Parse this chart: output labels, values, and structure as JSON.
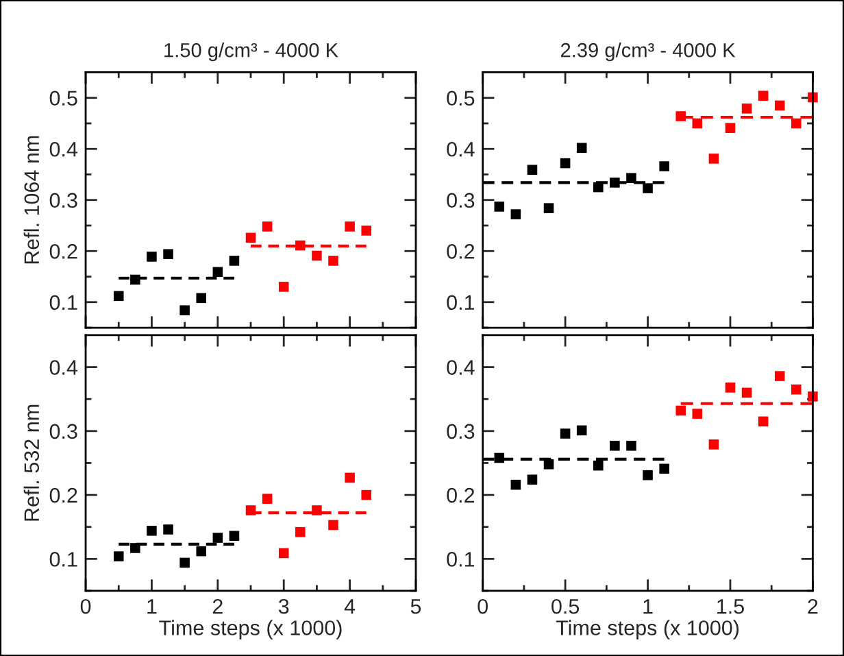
{
  "chart_data": [
    {
      "type": "scatter",
      "title": "1.50 g/cm³ - 4000 K",
      "ylabel": "Refl. 1064 nm",
      "xlim": [
        0,
        5
      ],
      "ylim": [
        0.05,
        0.55
      ],
      "xticks": [
        0,
        {
          "value": 0.5,
          "label": null
        },
        1,
        {
          "value": 1.5,
          "label": null
        },
        2,
        {
          "value": 2.5,
          "label": null
        },
        3,
        {
          "value": 3.5,
          "label": null
        },
        4,
        {
          "value": 4.5,
          "label": null
        },
        5
      ],
      "yticks": [
        {
          "value": 0.05,
          "label": null
        },
        0.1,
        {
          "value": 0.15,
          "label": null
        },
        0.2,
        {
          "value": 0.25,
          "label": null
        },
        0.3,
        {
          "value": 0.35,
          "label": null
        },
        0.4,
        {
          "value": 0.45,
          "label": null
        },
        0.5
      ],
      "tick_labels": "y",
      "grid": false,
      "marker": "square",
      "series": [
        {
          "type": "scatter",
          "color": "#000000",
          "x": [
            0.5,
            0.75,
            1.0,
            1.25,
            1.5,
            1.75,
            2.0,
            2.25
          ],
          "values": [
            0.112,
            0.144,
            0.189,
            0.194,
            0.084,
            0.108,
            0.159,
            0.181
          ]
        },
        {
          "type": "scatter",
          "color": "#ff0000",
          "x": [
            2.5,
            2.75,
            3.0,
            3.25,
            3.5,
            3.75,
            4.0,
            4.25
          ],
          "values": [
            0.226,
            0.248,
            0.13,
            0.211,
            0.191,
            0.181,
            0.248,
            0.24
          ]
        },
        {
          "type": "line",
          "color": "#000000",
          "line_style": "dashed",
          "marker": "none",
          "x": [
            0.5,
            2.25
          ],
          "values": [
            0.147,
            0.147
          ]
        },
        {
          "type": "line",
          "color": "#ff0000",
          "line_style": "dashed",
          "marker": "none",
          "x": [
            2.5,
            4.25
          ],
          "values": [
            0.21,
            0.21
          ]
        }
      ]
    },
    {
      "type": "scatter",
      "title": "2.39 g/cm³ - 4000 K",
      "xlim": [
        0,
        2
      ],
      "ylim": [
        0.05,
        0.55
      ],
      "xticks": [
        0,
        {
          "value": 0.25,
          "label": null
        },
        0.5,
        {
          "value": 0.75,
          "label": null
        },
        1,
        {
          "value": 1.25,
          "label": null
        },
        1.5,
        {
          "value": 1.75,
          "label": null
        },
        2
      ],
      "yticks": [
        {
          "value": 0.05,
          "label": null
        },
        0.1,
        {
          "value": 0.15,
          "label": null
        },
        0.2,
        {
          "value": 0.25,
          "label": null
        },
        0.3,
        {
          "value": 0.35,
          "label": null
        },
        0.4,
        {
          "value": 0.45,
          "label": null
        },
        0.5
      ],
      "tick_labels": "y",
      "grid": false,
      "marker": "square",
      "series": [
        {
          "type": "scatter",
          "color": "#000000",
          "x": [
            0.1,
            0.2,
            0.3,
            0.4,
            0.5,
            0.6,
            0.7,
            0.8,
            0.9,
            1.0,
            1.1
          ],
          "values": [
            0.287,
            0.272,
            0.359,
            0.284,
            0.372,
            0.402,
            0.325,
            0.334,
            0.343,
            0.323,
            0.366
          ]
        },
        {
          "type": "scatter",
          "color": "#ff0000",
          "x": [
            1.2,
            1.3,
            1.4,
            1.5,
            1.6,
            1.7,
            1.8,
            1.9,
            2.0
          ],
          "values": [
            0.464,
            0.45,
            0.381,
            0.441,
            0.479,
            0.504,
            0.485,
            0.45,
            0.501
          ]
        },
        {
          "type": "line",
          "color": "#000000",
          "line_style": "dashed",
          "marker": "none",
          "x": [
            0.0,
            1.1
          ],
          "values": [
            0.334,
            0.334
          ]
        },
        {
          "type": "line",
          "color": "#ff0000",
          "line_style": "dashed",
          "marker": "none",
          "x": [
            1.2,
            2.0
          ],
          "values": [
            0.462,
            0.462
          ]
        }
      ]
    },
    {
      "type": "scatter",
      "xlabel": "Time steps (x 1000)",
      "ylabel": "Refl. 532 nm",
      "xlim": [
        0,
        5
      ],
      "ylim": [
        0.05,
        0.45
      ],
      "xticks": [
        0,
        {
          "value": 0.5,
          "label": null
        },
        1,
        {
          "value": 1.5,
          "label": null
        },
        2,
        {
          "value": 2.5,
          "label": null
        },
        3,
        {
          "value": 3.5,
          "label": null
        },
        4,
        {
          "value": 4.5,
          "label": null
        },
        5
      ],
      "yticks": [
        {
          "value": 0.05,
          "label": null
        },
        0.1,
        {
          "value": 0.15,
          "label": null
        },
        0.2,
        {
          "value": 0.25,
          "label": null
        },
        0.3,
        {
          "value": 0.35,
          "label": null
        },
        0.4
      ],
      "grid": false,
      "marker": "square",
      "series": [
        {
          "type": "scatter",
          "color": "#000000",
          "x": [
            0.5,
            0.75,
            1.0,
            1.25,
            1.5,
            1.75,
            2.0,
            2.25
          ],
          "values": [
            0.104,
            0.117,
            0.144,
            0.146,
            0.094,
            0.112,
            0.133,
            0.136
          ]
        },
        {
          "type": "scatter",
          "color": "#ff0000",
          "x": [
            2.5,
            2.75,
            3.0,
            3.25,
            3.5,
            3.75,
            4.0,
            4.25
          ],
          "values": [
            0.176,
            0.194,
            0.109,
            0.142,
            0.176,
            0.153,
            0.227,
            0.2
          ]
        },
        {
          "type": "line",
          "color": "#000000",
          "line_style": "dashed",
          "marker": "none",
          "x": [
            0.5,
            2.25
          ],
          "values": [
            0.123,
            0.123
          ]
        },
        {
          "type": "line",
          "color": "#ff0000",
          "line_style": "dashed",
          "marker": "none",
          "x": [
            2.5,
            4.25
          ],
          "values": [
            0.172,
            0.172
          ]
        }
      ]
    },
    {
      "type": "scatter",
      "xlabel": "Time steps (x 1000)",
      "xlim": [
        0,
        2
      ],
      "ylim": [
        0.05,
        0.45
      ],
      "xticks": [
        0,
        {
          "value": 0.25,
          "label": null
        },
        0.5,
        {
          "value": 0.75,
          "label": null
        },
        1,
        {
          "value": 1.25,
          "label": null
        },
        1.5,
        {
          "value": 1.75,
          "label": null
        },
        2
      ],
      "yticks": [
        {
          "value": 0.05,
          "label": null
        },
        0.1,
        {
          "value": 0.15,
          "label": null
        },
        0.2,
        {
          "value": 0.25,
          "label": null
        },
        0.3,
        {
          "value": 0.35,
          "label": null
        },
        0.4
      ],
      "grid": false,
      "marker": "square",
      "series": [
        {
          "type": "scatter",
          "color": "#000000",
          "x": [
            0.1,
            0.2,
            0.3,
            0.4,
            0.5,
            0.6,
            0.7,
            0.8,
            0.9,
            1.0,
            1.1
          ],
          "values": [
            0.258,
            0.216,
            0.224,
            0.248,
            0.296,
            0.301,
            0.246,
            0.277,
            0.277,
            0.231,
            0.241
          ]
        },
        {
          "type": "scatter",
          "color": "#ff0000",
          "x": [
            1.2,
            1.3,
            1.4,
            1.5,
            1.6,
            1.7,
            1.8,
            1.9,
            2.0
          ],
          "values": [
            0.332,
            0.327,
            0.279,
            0.368,
            0.36,
            0.315,
            0.386,
            0.365,
            0.354
          ]
        },
        {
          "type": "line",
          "color": "#000000",
          "line_style": "dashed",
          "marker": "none",
          "x": [
            0.0,
            1.1
          ],
          "values": [
            0.256,
            0.256
          ]
        },
        {
          "type": "line",
          "color": "#ff0000",
          "line_style": "dashed",
          "marker": "none",
          "x": [
            1.2,
            2.0
          ],
          "values": [
            0.343,
            0.343
          ]
        }
      ]
    }
  ]
}
